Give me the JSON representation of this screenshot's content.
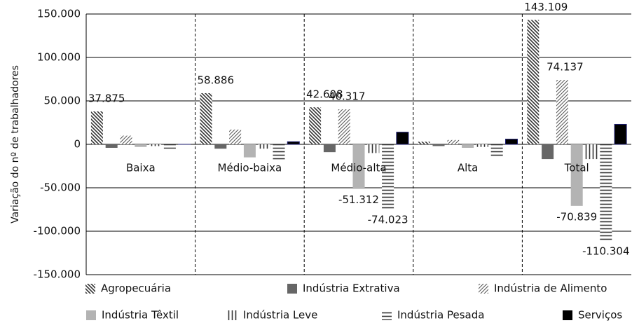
{
  "chart_data": {
    "type": "bar",
    "y_label": "Variação do nº de trabalhadores",
    "categories": [
      "Baixa",
      "Médio-baixa",
      "Médio-alta",
      "Alta",
      "Total"
    ],
    "ylim": [
      -150000,
      150000
    ],
    "yticks": [
      {
        "value": -150000,
        "label": "-150.000"
      },
      {
        "value": -100000,
        "label": "-100.000"
      },
      {
        "value": -50000,
        "label": "-50.000"
      },
      0,
      {
        "value": 50000,
        "label": "50.000"
      },
      {
        "value": 100000,
        "label": "100.000"
      },
      {
        "value": 150000,
        "label": "150.000"
      }
    ],
    "grid": true,
    "legend": "bottom",
    "series": [
      {
        "name": "Agropecuária",
        "color": "#333333",
        "values": [
          37875,
          58886,
          42608,
          3000,
          143109
        ],
        "value_labels": [
          "37.875",
          "58.886",
          "42.608",
          null,
          "143.109"
        ]
      },
      {
        "name": "Indústria Extrativa",
        "color": "#666666",
        "values": [
          -4000,
          -5000,
          -9000,
          -2000,
          -17000
        ]
      },
      {
        "name": "Indústria de  Alimento",
        "color": "#555555",
        "values": [
          10000,
          17000,
          40317,
          5000,
          74137
        ],
        "value_labels": [
          null,
          null,
          "40.317",
          null,
          "74.137"
        ]
      },
      {
        "name": "Indústria Têxtil",
        "color": "#b3b3b3",
        "values": [
          -3000,
          -15000,
          -51312,
          -4000,
          -70839
        ],
        "value_labels": [
          null,
          null,
          "-51.312",
          null,
          "-70.839"
        ]
      },
      {
        "name": "Indústria Leve",
        "color": "#333333",
        "values": [
          -2000,
          -5000,
          -10000,
          -3000,
          -17000
        ]
      },
      {
        "name": "Indústria Pesada",
        "color": "#333333",
        "values": [
          -5000,
          -19000,
          -74023,
          -14000,
          -110304
        ],
        "value_labels": [
          null,
          null,
          "-74.023",
          null,
          "-110.304"
        ]
      },
      {
        "name": "Serviços",
        "color": "#000000",
        "values": [
          0,
          3000,
          14000,
          6000,
          23000
        ]
      }
    ]
  }
}
